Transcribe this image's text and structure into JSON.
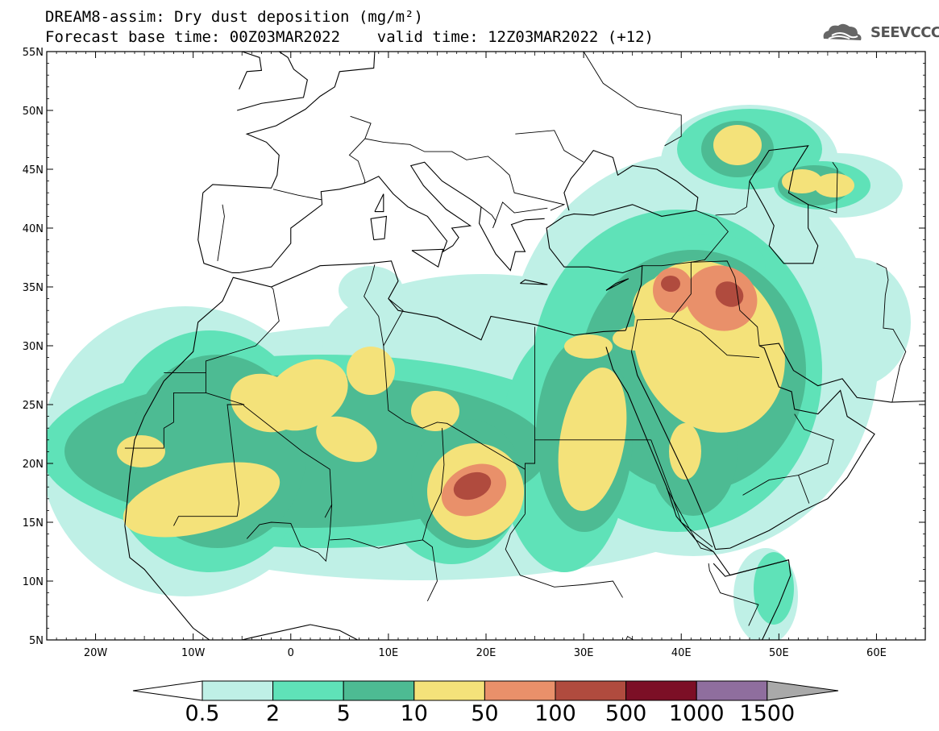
{
  "header": {
    "title_line1": "DREAM8-assim: Dry dust deposition (mg/m²)",
    "title_line2": "Forecast base time: 00Z03MAR2022    valid time: 12Z03MAR2022 (+12)",
    "logo_text": "SEEVCCC"
  },
  "axes": {
    "lat_labels": [
      "55N",
      "50N",
      "45N",
      "40N",
      "35N",
      "30N",
      "25N",
      "20N",
      "15N",
      "10N",
      "5N"
    ],
    "lon_labels": [
      "20W",
      "10W",
      "0",
      "10E",
      "20E",
      "30E",
      "40E",
      "50E",
      "60E"
    ]
  },
  "colorbar": {
    "labels": [
      "0.5",
      "2",
      "5",
      "10",
      "50",
      "100",
      "500",
      "1000",
      "1500"
    ],
    "colors": [
      "#bff0e6",
      "#5fe2b8",
      "#4dbb93",
      "#f4e27a",
      "#e9906a",
      "#b04b3e",
      "#7c0f26",
      "#8f6e9e"
    ],
    "under_color": "#ffffff",
    "over_color": "#a9a9a9"
  },
  "map": {
    "extent": {
      "lon_min": -25,
      "lon_max": 65,
      "lat_min": 5,
      "lat_max": 55
    },
    "field": "dry dust deposition"
  }
}
